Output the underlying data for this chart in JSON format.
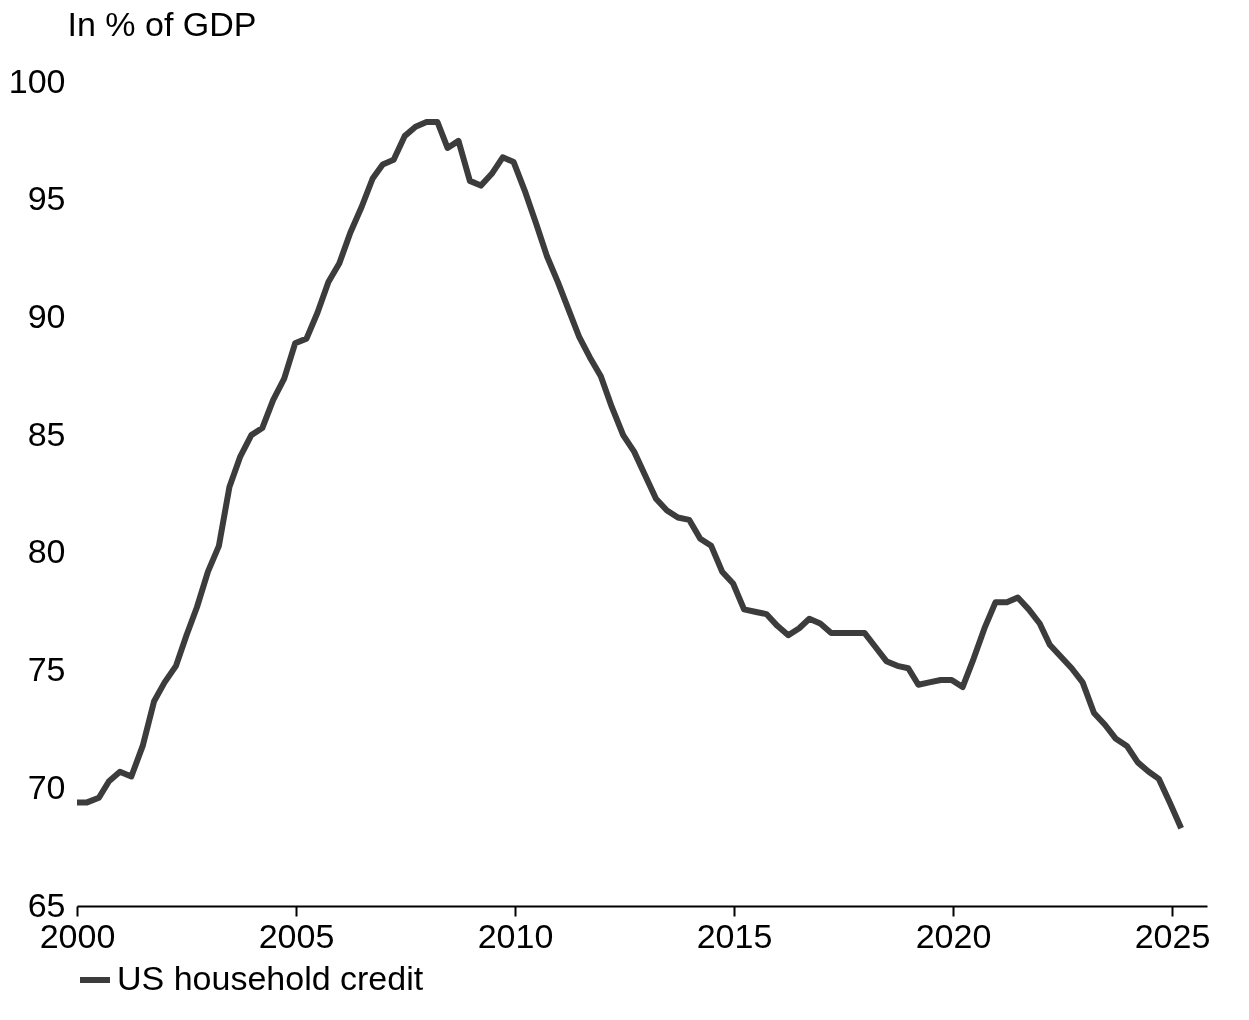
{
  "chart_data": {
    "type": "line",
    "ylabel": "In % of GDP",
    "xlim": [
      2000,
      2025.8
    ],
    "xticks": [
      2000,
      2005,
      2010,
      2015,
      2020,
      2025
    ],
    "ylim": [
      65,
      100
    ],
    "yticks": [
      65,
      70,
      75,
      80,
      85,
      90,
      95,
      100
    ],
    "grid": false,
    "legend": "bottom left",
    "line_style": "solid",
    "marker": "none",
    "x": [
      2000.0,
      2000.23,
      2000.5,
      2000.73,
      2000.98,
      2001.24,
      2001.5,
      2001.76,
      2002.0,
      2002.26,
      2002.5,
      2002.74,
      2002.99,
      2003.24,
      2003.48,
      2003.73,
      2003.98,
      2004.23,
      2004.48,
      2004.73,
      2004.98,
      2005.24,
      2005.49,
      2005.74,
      2005.99,
      2006.24,
      2006.5,
      2006.75,
      2006.98,
      2007.23,
      2007.48,
      2007.73,
      2007.98,
      2008.23,
      2008.46,
      2008.71,
      2008.97,
      2009.22,
      2009.47,
      2009.72,
      2009.97,
      2010.22,
      2010.48,
      2010.73,
      2010.98,
      2011.23,
      2011.46,
      2011.71,
      2011.96,
      2012.21,
      2012.47,
      2012.72,
      2012.97,
      2013.22,
      2013.47,
      2013.72,
      2013.98,
      2014.23,
      2014.48,
      2014.73,
      2014.98,
      2015.23,
      2015.48,
      2015.74,
      2015.99,
      2016.24,
      2016.49,
      2016.72,
      2016.97,
      2017.22,
      2017.47,
      2017.73,
      2017.98,
      2018.23,
      2018.48,
      2018.73,
      2018.98,
      2019.21,
      2019.46,
      2019.72,
      2019.97,
      2020.22,
      2020.47,
      2020.72,
      2020.97,
      2021.23,
      2021.48,
      2021.73,
      2021.98,
      2022.21,
      2022.46,
      2022.71,
      2022.96,
      2023.22,
      2023.47,
      2023.72,
      2023.97,
      2024.22,
      2024.47,
      2024.7,
      2024.95,
      2025.21
    ],
    "series": [
      {
        "name": "US household credit",
        "color": "#3c3c3c",
        "values": [
          69.4,
          69.4,
          69.6,
          70.3,
          70.7,
          70.5,
          71.8,
          73.7,
          74.5,
          75.2,
          76.5,
          77.7,
          79.2,
          80.3,
          82.8,
          84.1,
          85.0,
          85.3,
          86.5,
          87.4,
          88.9,
          89.1,
          90.2,
          91.5,
          92.3,
          93.6,
          94.7,
          95.9,
          96.5,
          96.7,
          97.7,
          98.1,
          98.3,
          98.3,
          97.2,
          97.5,
          95.8,
          95.6,
          96.1,
          96.8,
          96.6,
          95.4,
          94.0,
          92.6,
          91.5,
          90.3,
          89.2,
          88.3,
          87.5,
          86.2,
          85.0,
          84.3,
          83.3,
          82.3,
          81.8,
          81.5,
          81.4,
          80.6,
          80.3,
          79.2,
          78.7,
          77.6,
          77.5,
          77.4,
          76.9,
          76.5,
          76.8,
          77.2,
          77.0,
          76.6,
          76.6,
          76.6,
          76.6,
          76.0,
          75.4,
          75.2,
          75.1,
          74.4,
          74.5,
          74.6,
          74.6,
          74.3,
          75.5,
          76.8,
          77.9,
          77.9,
          78.1,
          77.6,
          77.0,
          76.1,
          75.6,
          75.1,
          74.5,
          73.2,
          72.7,
          72.1,
          71.8,
          71.1,
          70.7,
          70.4,
          69.4,
          68.3
        ]
      }
    ]
  }
}
